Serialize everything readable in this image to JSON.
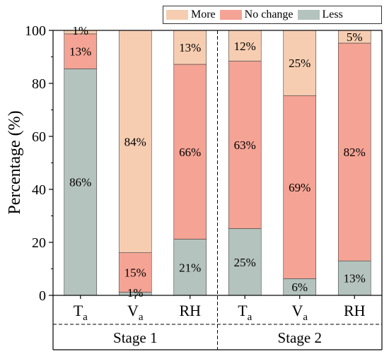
{
  "chart_data": {
    "type": "bar",
    "stacked": true,
    "ylabel": "Percentage (%)",
    "ylim": [
      0,
      100
    ],
    "yticks": [
      0,
      20,
      40,
      60,
      80,
      100
    ],
    "groups": [
      {
        "label": "Stage 1",
        "categories": [
          {
            "main": "T",
            "sub": "a"
          },
          {
            "main": "V",
            "sub": "a"
          },
          {
            "main": "RH",
            "sub": ""
          }
        ]
      },
      {
        "label": "Stage 2",
        "categories": [
          {
            "main": "T",
            "sub": "a"
          },
          {
            "main": "V",
            "sub": "a"
          },
          {
            "main": "RH",
            "sub": ""
          }
        ]
      }
    ],
    "series": [
      {
        "name": "Less",
        "color": "#b4c3bd",
        "values": [
          85.5,
          1.2,
          21.2,
          25.2,
          6.3,
          13.0
        ],
        "labels": [
          "86%",
          "1%",
          "21%",
          "25%",
          "6%",
          "13%"
        ]
      },
      {
        "name": "No change",
        "color": "#f4a394",
        "values": [
          13.2,
          14.9,
          66.0,
          63.2,
          69.1,
          82.2
        ],
        "labels": [
          "13%",
          "15%",
          "66%",
          "63%",
          "69%",
          "82%"
        ]
      },
      {
        "name": "More",
        "color": "#f6cdb1",
        "values": [
          1.3,
          83.9,
          12.8,
          11.6,
          24.6,
          4.8
        ],
        "labels": [
          "1%",
          "84%",
          "13%",
          "12%",
          "25%",
          "5%"
        ]
      }
    ],
    "legend": {
      "placement": "top-right",
      "order": [
        "More",
        "No change",
        "Less"
      ]
    },
    "grid": false
  }
}
